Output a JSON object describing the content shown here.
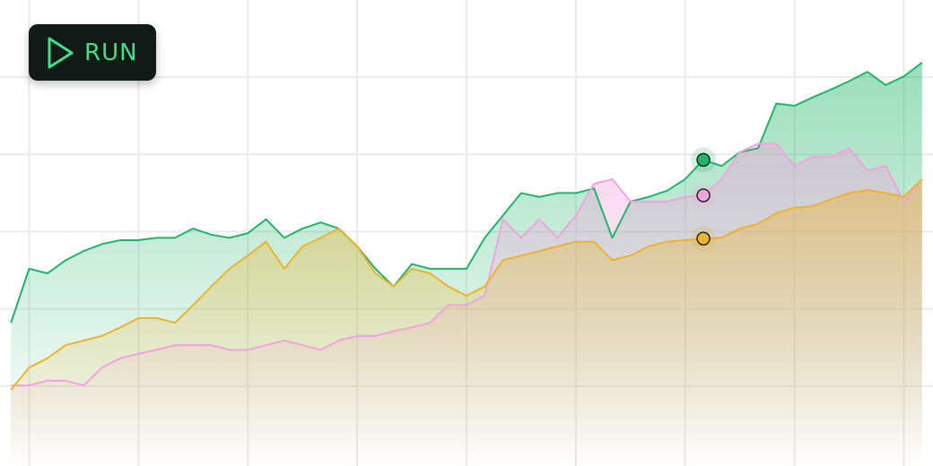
{
  "run_button": {
    "label": "RUN"
  },
  "chart_data": {
    "type": "area",
    "x": [
      -1,
      0,
      1,
      2,
      3,
      4,
      5,
      6,
      7,
      8,
      9,
      10,
      11,
      12,
      13,
      14,
      15,
      16,
      17,
      18,
      19,
      20,
      21,
      22,
      23,
      24,
      25,
      26,
      27,
      28,
      29,
      30,
      31,
      32,
      33,
      34,
      35,
      36,
      37,
      38,
      39,
      40,
      41,
      42,
      43,
      44,
      45,
      46,
      47,
      48,
      49
    ],
    "xlim": [
      -1.6,
      49.6
    ],
    "xticks": [
      0,
      6,
      12,
      18,
      24,
      30,
      36,
      42,
      48
    ],
    "ylim": [
      0,
      6
    ],
    "yticks": [
      1,
      2,
      3,
      4,
      5
    ],
    "grid": true,
    "cursor_x": 37,
    "series": [
      {
        "color": "#22b56a",
        "values": [
          1.82,
          2.52,
          2.46,
          2.63,
          2.75,
          2.84,
          2.89,
          2.89,
          2.92,
          2.92,
          3.04,
          2.96,
          2.92,
          2.98,
          3.16,
          2.92,
          3.04,
          3.12,
          3.04,
          2.81,
          2.52,
          2.29,
          2.58,
          2.52,
          2.52,
          2.52,
          2.92,
          3.21,
          3.5,
          3.45,
          3.5,
          3.5,
          3.56,
          2.92,
          3.39,
          3.45,
          3.53,
          3.68,
          3.93,
          3.85,
          4.03,
          4.08,
          4.66,
          4.63,
          4.74,
          4.84,
          4.95,
          5.07,
          4.9,
          5.01,
          5.19
        ]
      },
      {
        "color": "#f2a3dd",
        "values": [
          1.01,
          1.01,
          1.07,
          1.07,
          1.01,
          1.24,
          1.36,
          1.42,
          1.47,
          1.53,
          1.53,
          1.53,
          1.47,
          1.47,
          1.53,
          1.59,
          1.53,
          1.47,
          1.59,
          1.65,
          1.65,
          1.71,
          1.76,
          1.82,
          2.05,
          2.05,
          2.17,
          3.16,
          2.92,
          3.16,
          2.92,
          3.21,
          3.62,
          3.68,
          3.39,
          3.39,
          3.39,
          3.45,
          3.47,
          3.68,
          4.03,
          4.14,
          4.14,
          3.85,
          3.97,
          3.97,
          4.08,
          3.79,
          3.85,
          3.39,
          3.68
        ]
      },
      {
        "color": "#eeb32e",
        "values": [
          0.95,
          1.24,
          1.36,
          1.53,
          1.59,
          1.65,
          1.76,
          1.88,
          1.88,
          1.82,
          2.05,
          2.29,
          2.52,
          2.69,
          2.87,
          2.52,
          2.81,
          2.92,
          3.04,
          2.81,
          2.46,
          2.29,
          2.52,
          2.46,
          2.29,
          2.17,
          2.29,
          2.63,
          2.69,
          2.75,
          2.81,
          2.87,
          2.87,
          2.63,
          2.69,
          2.81,
          2.87,
          2.89,
          2.91,
          2.92,
          3.04,
          3.1,
          3.24,
          3.31,
          3.33,
          3.42,
          3.5,
          3.54,
          3.5,
          3.45,
          3.68
        ]
      }
    ]
  }
}
